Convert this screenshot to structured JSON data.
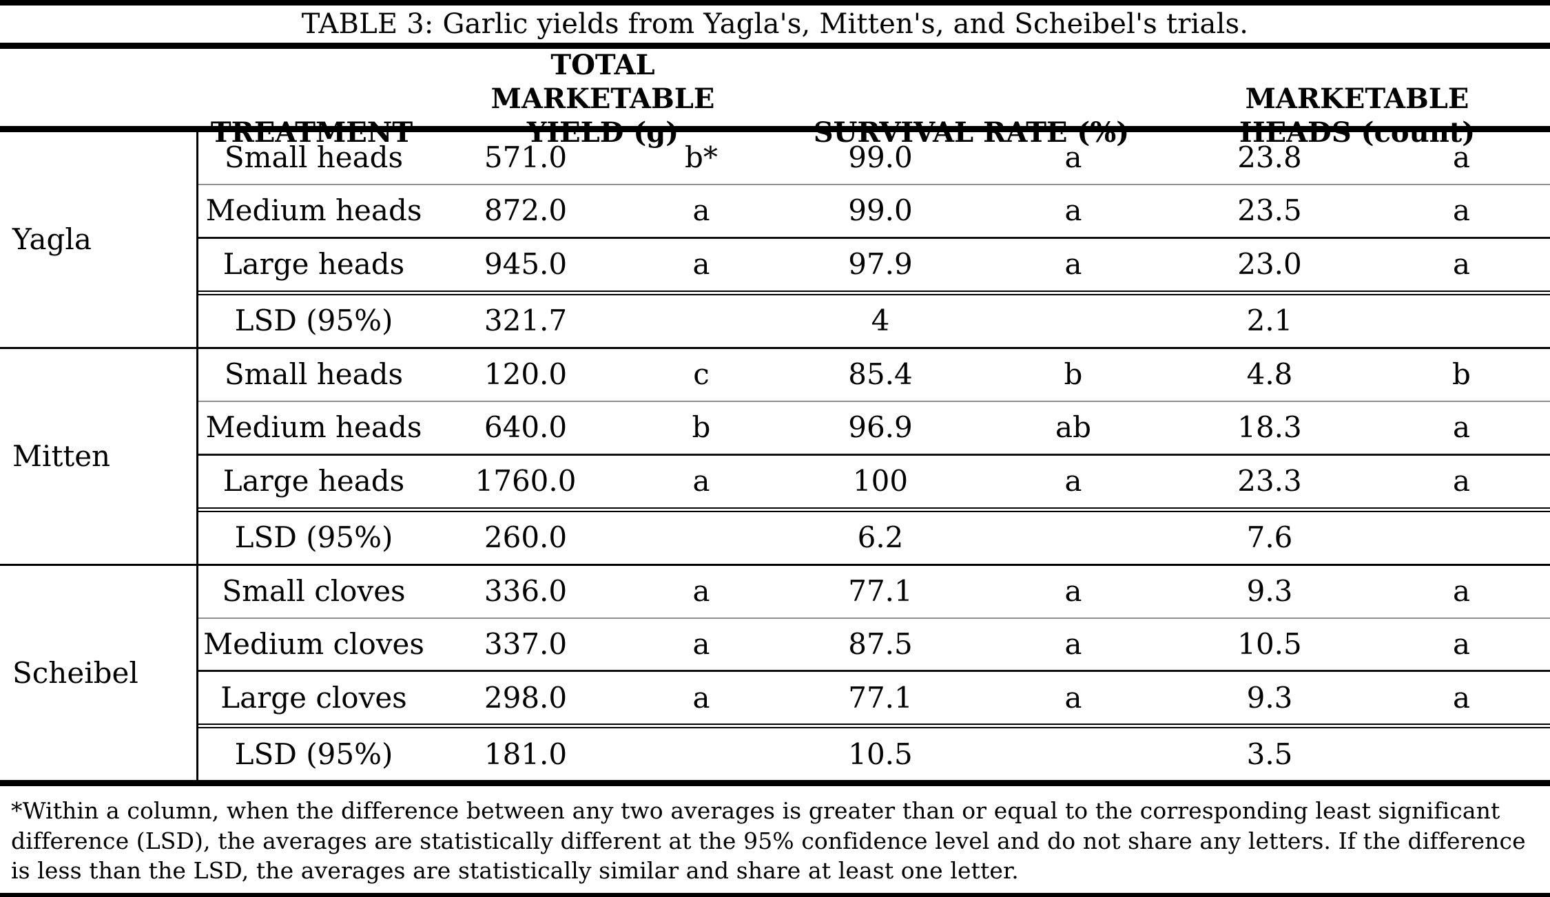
{
  "table": {
    "title": "TABLE 3: Garlic yields from Yagla's, Mitten's, and Scheibel's trials.",
    "headers": {
      "treatment": "TREATMENT",
      "yield": "TOTAL MARKETABLE YIELD (g)",
      "survival": "SURVIVAL RATE (%)",
      "heads": "MARKETABLE HEADS (count)"
    },
    "sections": [
      {
        "trial": "Yagla",
        "rows": [
          {
            "treatment": "Small heads",
            "yield": "571.0",
            "yield_letter": "b*",
            "survival": "99.0",
            "survival_letter": "a",
            "heads": "23.8",
            "heads_letter": "a"
          },
          {
            "treatment": "Medium heads",
            "yield": "872.0",
            "yield_letter": "a",
            "survival": "99.0",
            "survival_letter": "a",
            "heads": "23.5",
            "heads_letter": "a"
          },
          {
            "treatment": "Large heads",
            "yield": "945.0",
            "yield_letter": "a",
            "survival": "97.9",
            "survival_letter": "a",
            "heads": "23.0",
            "heads_letter": "a"
          }
        ],
        "lsd": {
          "label": "LSD (95%)",
          "yield": "321.7",
          "survival": "4",
          "heads": "2.1"
        }
      },
      {
        "trial": "Mitten",
        "rows": [
          {
            "treatment": "Small heads",
            "yield": "120.0",
            "yield_letter": "c",
            "survival": "85.4",
            "survival_letter": "b",
            "heads": "4.8",
            "heads_letter": "b"
          },
          {
            "treatment": "Medium heads",
            "yield": "640.0",
            "yield_letter": "b",
            "survival": "96.9",
            "survival_letter": "ab",
            "heads": "18.3",
            "heads_letter": "a"
          },
          {
            "treatment": "Large heads",
            "yield": "1760.0",
            "yield_letter": "a",
            "survival": "100",
            "survival_letter": "a",
            "heads": "23.3",
            "heads_letter": "a"
          }
        ],
        "lsd": {
          "label": "LSD (95%)",
          "yield": "260.0",
          "survival": "6.2",
          "heads": "7.6"
        }
      },
      {
        "trial": "Scheibel",
        "rows": [
          {
            "treatment": "Small cloves",
            "yield": "336.0",
            "yield_letter": "a",
            "survival": "77.1",
            "survival_letter": "a",
            "heads": "9.3",
            "heads_letter": "a"
          },
          {
            "treatment": "Medium cloves",
            "yield": "337.0",
            "yield_letter": "a",
            "survival": "87.5",
            "survival_letter": "a",
            "heads": "10.5",
            "heads_letter": "a"
          },
          {
            "treatment": "Large cloves",
            "yield": "298.0",
            "yield_letter": "a",
            "survival": "77.1",
            "survival_letter": "a",
            "heads": "9.3",
            "heads_letter": "a"
          }
        ],
        "lsd": {
          "label": "LSD (95%)",
          "yield": "181.0",
          "survival": "10.5",
          "heads": "3.5"
        }
      }
    ],
    "footnote": "*Within a column, when the difference between any two averages is greater than or equal to the corresponding least significant difference (LSD), the averages are statistically different at the 95% confidence level and do not share any letters. If the difference is less than the LSD, the averages are statistically similar and share at least one letter."
  }
}
